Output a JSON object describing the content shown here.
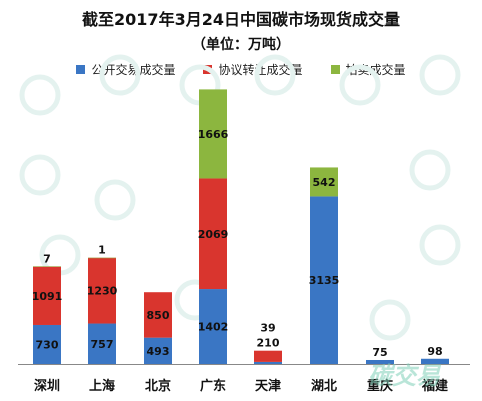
{
  "chart_data": {
    "type": "bar",
    "stacked": true,
    "title": "截至2017年3月24日中国碳市场现货成交量",
    "subtitle": "（单位：万吨）",
    "categories": [
      "深圳",
      "上海",
      "北京",
      "广东",
      "天津",
      "湖北",
      "重庆",
      "福建"
    ],
    "series": [
      {
        "name": "公开交易成交量",
        "color": "#3A76C4",
        "values": [
          730,
          757,
          493,
          1402,
          39,
          3135,
          75,
          98
        ]
      },
      {
        "name": "协议转让成交量",
        "color": "#D9352E",
        "values": [
          1091,
          1230,
          850,
          2069,
          210,
          null,
          null,
          null
        ]
      },
      {
        "name": "拍卖成交量",
        "color": "#8CB63F",
        "values": [
          7,
          1,
          null,
          1666,
          null,
          542,
          null,
          null
        ]
      }
    ],
    "ylim": [
      0,
      5500
    ],
    "legend_position": "top",
    "grid": false,
    "watermark": "碳交易"
  }
}
